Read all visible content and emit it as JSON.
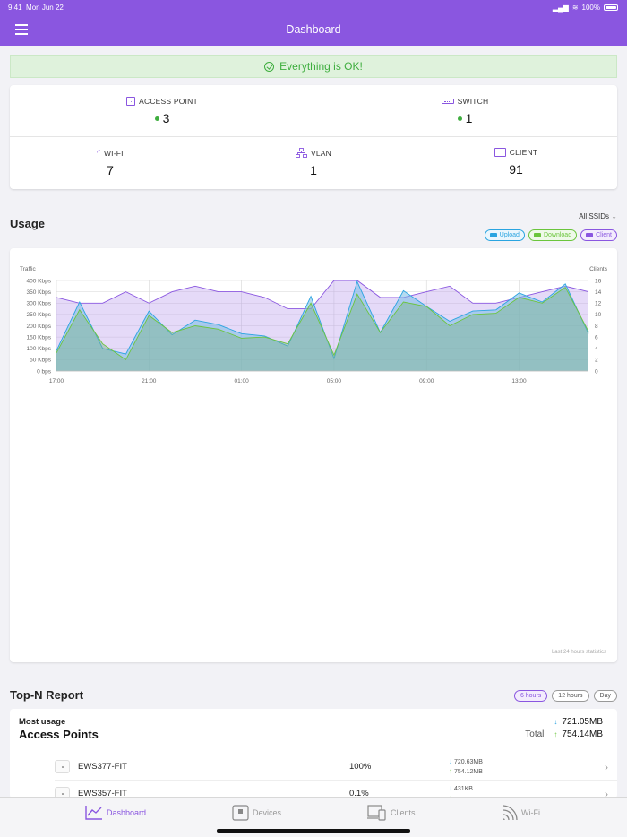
{
  "status": {
    "time": "9:41",
    "date": "Mon Jun 22",
    "battery": "100%"
  },
  "nav": {
    "title": "Dashboard"
  },
  "banner": {
    "text": "Everything is OK!"
  },
  "summary": {
    "access_point": {
      "label": "ACCESS POINT",
      "value": "3"
    },
    "switch": {
      "label": "SWITCH",
      "value": "1"
    },
    "wifi": {
      "label": "WI-FI",
      "value": "7"
    },
    "vlan": {
      "label": "VLAN",
      "value": "1"
    },
    "client": {
      "label": "CLIENT",
      "value": "91"
    }
  },
  "usage": {
    "title": "Usage",
    "ssid_filter": "All SSIDs",
    "legend": {
      "upload": "Upload",
      "download": "Download",
      "client": "Client"
    },
    "footer": "Last 24 hours statistics"
  },
  "colors": {
    "accent": "#8a56e0",
    "upload": "#2aa4e0",
    "download": "#6bc53c",
    "ok": "#3fae3f"
  },
  "chart_data": {
    "type": "area",
    "title": "",
    "ylabel": "Traffic",
    "y2label": "Clients",
    "x": [
      "17:00",
      "18:00",
      "19:00",
      "20:00",
      "21:00",
      "22:00",
      "23:00",
      "00:00",
      "01:00",
      "02:00",
      "03:00",
      "04:00",
      "05:00",
      "06:00",
      "07:00",
      "08:00",
      "09:00",
      "10:00",
      "11:00",
      "12:00",
      "13:00",
      "14:00",
      "15:00",
      "16:00"
    ],
    "xticks": [
      "17:00",
      "21:00",
      "01:00",
      "05:00",
      "09:00",
      "13:00"
    ],
    "yticks": [
      "0 bps",
      "50 Kbps",
      "100 Kbps",
      "150 Kbps",
      "200 Kbps",
      "250 Kbps",
      "300 Kbps",
      "350 Kbps",
      "400 Kbps"
    ],
    "y2ticks": [
      "0",
      "2",
      "4",
      "6",
      "8",
      "10",
      "12",
      "14",
      "16"
    ],
    "ylim": [
      0,
      400
    ],
    "y2lim": [
      0,
      16
    ],
    "series": [
      {
        "name": "Client",
        "axis": "right",
        "values": [
          13,
          12,
          12,
          14,
          12,
          14,
          15,
          14,
          14,
          13,
          11,
          11,
          16,
          16,
          13,
          13,
          14,
          15,
          12,
          12,
          13,
          14,
          15,
          14
        ]
      },
      {
        "name": "Upload",
        "axis": "left",
        "values": [
          90,
          305,
          100,
          75,
          265,
          160,
          225,
          205,
          165,
          155,
          110,
          330,
          55,
          395,
          170,
          355,
          285,
          220,
          265,
          270,
          345,
          305,
          385,
          165
        ]
      },
      {
        "name": "Download",
        "axis": "left",
        "values": [
          80,
          270,
          120,
          50,
          245,
          170,
          200,
          185,
          145,
          150,
          120,
          300,
          70,
          340,
          170,
          305,
          285,
          200,
          250,
          255,
          325,
          300,
          370,
          175
        ]
      }
    ]
  },
  "topn": {
    "title": "Top-N Report",
    "ranges": [
      "6 hours",
      "12 hours",
      "Day"
    ],
    "heading_small": "Most usage",
    "heading_large": "Access Points",
    "total_label": "Total",
    "total_down": "721.05MB",
    "total_up": "754.14MB",
    "rows": [
      {
        "name": "EWS377-FIT",
        "percent": "100%",
        "down": "720.63MB",
        "up": "754.12MB"
      },
      {
        "name": "EWS357-FIT",
        "percent": "0.1%",
        "down": "431KB",
        "up": ""
      }
    ]
  },
  "tabs": [
    "Dashboard",
    "Devices",
    "Clients",
    "Wi-Fi"
  ]
}
